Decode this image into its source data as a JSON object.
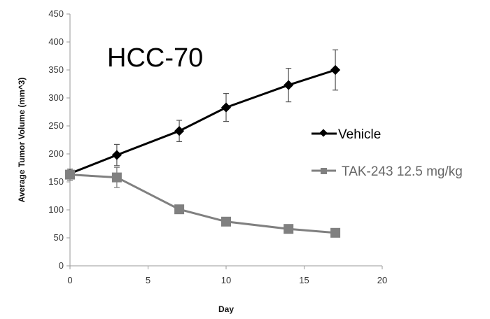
{
  "chart_data": {
    "type": "line",
    "title": "HCC-70",
    "xlabel": "Day",
    "ylabel": "Average Tumor Volume (mm^3)",
    "xlim": [
      0,
      20
    ],
    "ylim": [
      0,
      450
    ],
    "xticks": [
      "0",
      "5",
      "10",
      "15",
      "20"
    ],
    "yticks": [
      "0",
      "50",
      "100",
      "150",
      "200",
      "250",
      "300",
      "350",
      "400",
      "450"
    ],
    "grid": false,
    "legend_position": "right",
    "series": [
      {
        "name": "Vehicle",
        "color": "#000000",
        "marker": "diamond",
        "x": [
          0,
          3,
          7,
          10,
          14,
          17
        ],
        "y": [
          165,
          198,
          241,
          283,
          323,
          350
        ],
        "error": [
          8,
          19,
          19,
          25,
          30,
          36
        ]
      },
      {
        "name": "TAK-243 12.5 mg/kg",
        "color": "#808080",
        "marker": "square",
        "x": [
          0,
          3,
          7,
          10,
          14,
          17
        ],
        "y": [
          163,
          158,
          101,
          79,
          66,
          59
        ],
        "error": [
          10,
          18,
          0,
          0,
          0,
          0
        ]
      }
    ]
  }
}
